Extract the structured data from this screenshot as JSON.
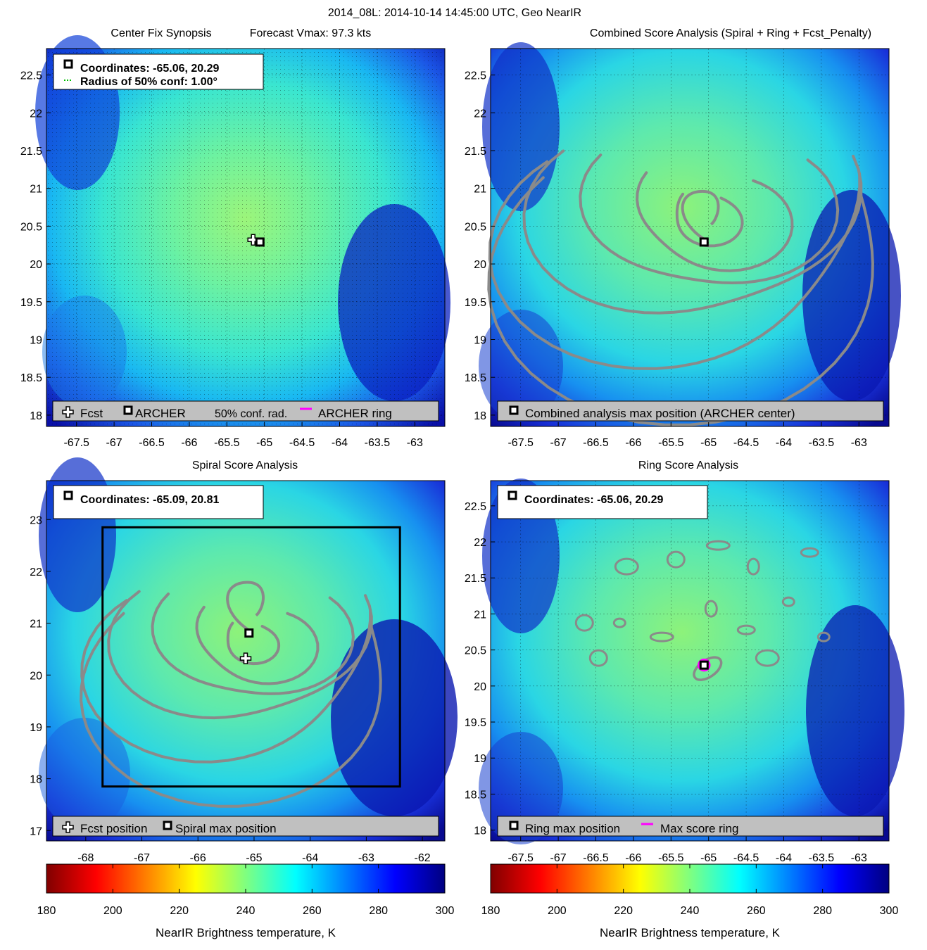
{
  "figure": {
    "title": "2014_08L: 2014-10-14 14:45:00 UTC, Geo NearIR"
  },
  "colors": {
    "contour": "#8a8a8a",
    "legend_box": "#c0c0c0",
    "ring": "#ff00ff",
    "square_marker": "#000000"
  },
  "chart_data": [
    {
      "type": "heatmap",
      "title": "Center Fix Synopsis",
      "subtitle": "Forecast Vmax: 97.3 kts",
      "grid": true,
      "xticks": [
        "-67.5",
        "-67",
        "-66.5",
        "-66",
        "-65.5",
        "-65",
        "-64.5",
        "-64",
        "-63.5",
        "-63"
      ],
      "yticks": [
        "22.5",
        "22",
        "21.5",
        "21",
        "20.5",
        "20",
        "19.5",
        "19",
        "18.5",
        "18"
      ],
      "xlim": [
        -67.9,
        -62.6
      ],
      "ylim": [
        17.85,
        22.85
      ],
      "info_lines": [
        "Coordinates: -65.06, 20.29",
        "Radius of 50% conf: 1.00°"
      ],
      "legend": [
        "Fcst",
        "ARCHER",
        "50% conf. rad.",
        "ARCHER ring"
      ],
      "markers": {
        "fcst": [
          -65.15,
          20.32
        ],
        "archer": [
          -65.06,
          20.29
        ]
      }
    },
    {
      "type": "heatmap",
      "title": "Combined Score Analysis (Spiral + Ring + Fcst_Penalty)",
      "grid": true,
      "xticks": [
        "-67.5",
        "-67",
        "-66.5",
        "-66",
        "-65.5",
        "-65",
        "-64.5",
        "-64",
        "-63.5",
        "-63"
      ],
      "yticks": [
        "22.5",
        "22",
        "21.5",
        "21",
        "20.5",
        "20",
        "19.5",
        "19",
        "18.5",
        "18"
      ],
      "xlim": [
        -67.9,
        -62.6
      ],
      "ylim": [
        17.85,
        22.85
      ],
      "legend": [
        "Combined analysis max position (ARCHER center)"
      ],
      "markers": {
        "archer": [
          -65.06,
          20.29
        ]
      }
    },
    {
      "type": "heatmap",
      "title": "Spiral Score Analysis",
      "grid": false,
      "xticks": [
        "-68",
        "-67",
        "-66",
        "-65",
        "-64",
        "-63",
        "-62"
      ],
      "yticks": [
        "23",
        "22",
        "21",
        "20",
        "19",
        "18",
        "17"
      ],
      "xlim": [
        -68.7,
        -61.6
      ],
      "ylim": [
        16.8,
        23.75
      ],
      "info_lines": [
        "Coordinates: -65.09, 20.81"
      ],
      "legend": [
        "Fcst position",
        "Spiral max position"
      ],
      "search_box": [
        -67.7,
        17.85,
        -62.4,
        22.85
      ],
      "markers": {
        "fcst": [
          -65.15,
          20.32
        ],
        "spiral": [
          -65.09,
          20.81
        ]
      }
    },
    {
      "type": "heatmap",
      "title": "Ring Score Analysis",
      "grid": true,
      "xticks": [
        "-67.5",
        "-67",
        "-66.5",
        "-66",
        "-65.5",
        "-65",
        "-64.5",
        "-64",
        "-63.5",
        "-63"
      ],
      "yticks": [
        "22.5",
        "22",
        "21.5",
        "21",
        "20.5",
        "20",
        "19.5",
        "19",
        "18.5",
        "18"
      ],
      "xlim": [
        -67.9,
        -62.6
      ],
      "ylim": [
        17.85,
        22.85
      ],
      "info_lines": [
        "Coordinates: -65.06, 20.29"
      ],
      "legend": [
        "Ring max position",
        "Max score ring"
      ],
      "markers": {
        "ring": [
          -65.06,
          20.29
        ]
      }
    }
  ],
  "colorbars": [
    {
      "ticks": [
        "180",
        "200",
        "220",
        "240",
        "260",
        "280",
        "300"
      ],
      "range": [
        180,
        300
      ],
      "label": "NearIR Brightness temperature, K"
    },
    {
      "ticks": [
        "180",
        "200",
        "220",
        "240",
        "260",
        "280",
        "300"
      ],
      "range": [
        180,
        300
      ],
      "label": "NearIR Brightness temperature, K"
    }
  ]
}
